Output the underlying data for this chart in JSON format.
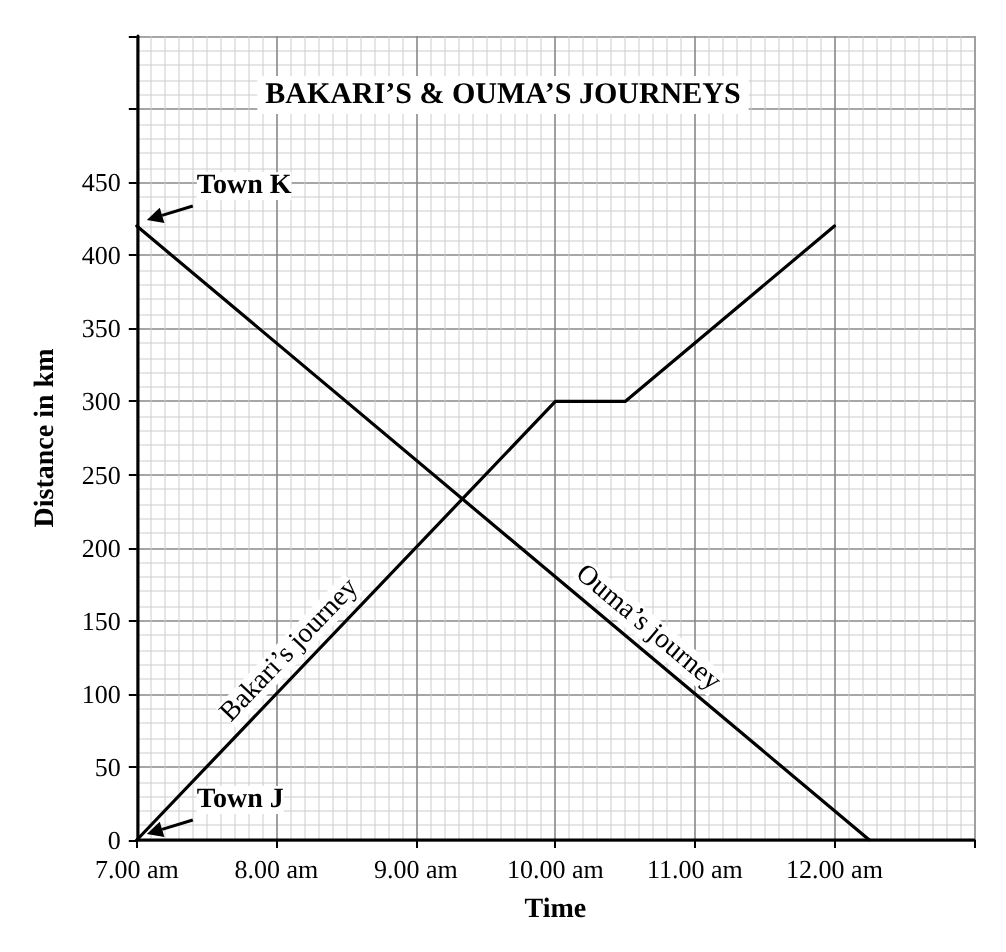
{
  "chart_data": {
    "type": "line",
    "title": "BAKARI’S & OUMA’S JOURNEYS",
    "xlabel": "Time",
    "ylabel": "Distance in km",
    "series": [
      {
        "name": "Bakari’s journey",
        "color": "#000000",
        "x": [
          7,
          10,
          10.5,
          12
        ],
        "values": [
          0,
          300,
          300,
          420
        ]
      },
      {
        "name": "Ouma’s journey",
        "color": "#000000",
        "x": [
          7,
          12.25
        ],
        "values": [
          420,
          0
        ]
      }
    ],
    "xlim": [
      7,
      13
    ],
    "xticks": [
      {
        "value": 7,
        "label": "7.00 am"
      },
      {
        "value": 8,
        "label": "8.00 am"
      },
      {
        "value": 9,
        "label": "9.00 am"
      },
      {
        "value": 10,
        "label": "10.00 am"
      },
      {
        "value": 11,
        "label": "11.00 am"
      },
      {
        "value": 12,
        "label": "12.00 am"
      },
      {
        "value": 13,
        "label": null
      }
    ],
    "ylim": [
      0,
      550
    ],
    "yticks": [
      0,
      50,
      100,
      150,
      200,
      250,
      300,
      350,
      400,
      450,
      {
        "value": 500,
        "label": null
      },
      {
        "value": 550,
        "label": null
      }
    ],
    "grid": true,
    "marker": "none",
    "line_style": "solid",
    "legend": false,
    "annotations": [
      {
        "text": "Town K",
        "x": 7,
        "y": 420
      },
      {
        "text": "Town J",
        "x": 7,
        "y": 0
      }
    ]
  }
}
